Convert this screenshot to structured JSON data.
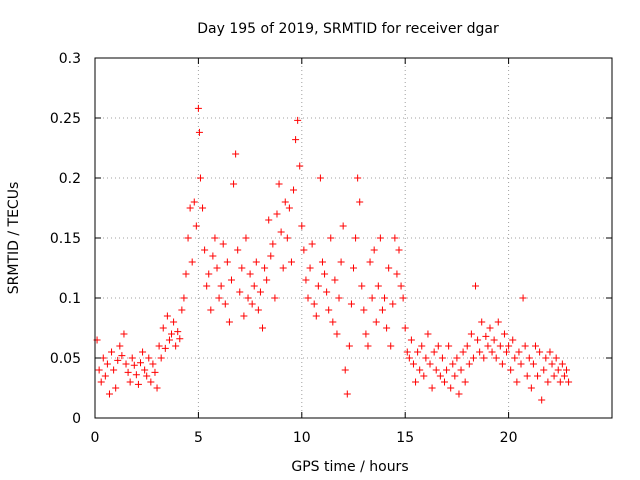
{
  "chart_data": {
    "type": "scatter",
    "title": "Day 195 of 2019, SRMTID for receiver dgar",
    "xlabel": "GPS time / hours",
    "ylabel": "SRMTID / TECUs",
    "xlim": [
      0,
      25
    ],
    "ylim": [
      0,
      0.3
    ],
    "x_ticks": [
      0,
      5,
      10,
      15,
      20
    ],
    "x_tick_labels": [
      "0",
      "5",
      "10",
      "15",
      "20"
    ],
    "y_ticks": [
      0,
      0.05,
      0.1,
      0.15,
      0.2,
      0.25,
      0.3
    ],
    "y_tick_labels": [
      "0",
      "0.05",
      "0.1",
      "0.15",
      "0.2",
      "0.25",
      "0.3"
    ],
    "grid": true,
    "marker": "+",
    "marker_color": "#ff0000",
    "series": [
      {
        "name": "SRMTID",
        "points": [
          [
            0.1,
            0.065
          ],
          [
            0.2,
            0.04
          ],
          [
            0.3,
            0.03
          ],
          [
            0.4,
            0.05
          ],
          [
            0.5,
            0.035
          ],
          [
            0.6,
            0.045
          ],
          [
            0.7,
            0.02
          ],
          [
            0.8,
            0.055
          ],
          [
            0.9,
            0.04
          ],
          [
            1.0,
            0.025
          ],
          [
            1.1,
            0.048
          ],
          [
            1.2,
            0.06
          ],
          [
            1.3,
            0.052
          ],
          [
            1.4,
            0.07
          ],
          [
            1.5,
            0.045
          ],
          [
            1.6,
            0.038
          ],
          [
            1.7,
            0.03
          ],
          [
            1.8,
            0.05
          ],
          [
            1.9,
            0.044
          ],
          [
            2.0,
            0.036
          ],
          [
            2.1,
            0.028
          ],
          [
            2.2,
            0.046
          ],
          [
            2.3,
            0.055
          ],
          [
            2.4,
            0.04
          ],
          [
            2.5,
            0.035
          ],
          [
            2.6,
            0.05
          ],
          [
            2.7,
            0.03
          ],
          [
            2.8,
            0.045
          ],
          [
            2.9,
            0.038
          ],
          [
            3.0,
            0.025
          ],
          [
            3.1,
            0.06
          ],
          [
            3.2,
            0.05
          ],
          [
            3.3,
            0.075
          ],
          [
            3.4,
            0.058
          ],
          [
            3.5,
            0.085
          ],
          [
            3.6,
            0.065
          ],
          [
            3.7,
            0.07
          ],
          [
            3.8,
            0.08
          ],
          [
            3.9,
            0.06
          ],
          [
            4.0,
            0.072
          ],
          [
            4.1,
            0.066
          ],
          [
            4.2,
            0.09
          ],
          [
            4.3,
            0.1
          ],
          [
            4.4,
            0.12
          ],
          [
            4.5,
            0.15
          ],
          [
            4.6,
            0.175
          ],
          [
            4.7,
            0.13
          ],
          [
            4.8,
            0.18
          ],
          [
            4.9,
            0.16
          ],
          [
            5.0,
            0.258
          ],
          [
            5.05,
            0.238
          ],
          [
            5.1,
            0.2
          ],
          [
            5.2,
            0.175
          ],
          [
            5.3,
            0.14
          ],
          [
            5.4,
            0.11
          ],
          [
            5.5,
            0.12
          ],
          [
            5.6,
            0.09
          ],
          [
            5.7,
            0.135
          ],
          [
            5.8,
            0.15
          ],
          [
            5.9,
            0.125
          ],
          [
            6.0,
            0.1
          ],
          [
            6.1,
            0.11
          ],
          [
            6.2,
            0.145
          ],
          [
            6.3,
            0.095
          ],
          [
            6.4,
            0.13
          ],
          [
            6.5,
            0.08
          ],
          [
            6.6,
            0.115
          ],
          [
            6.7,
            0.195
          ],
          [
            6.8,
            0.22
          ],
          [
            6.9,
            0.14
          ],
          [
            7.0,
            0.105
          ],
          [
            7.1,
            0.125
          ],
          [
            7.2,
            0.085
          ],
          [
            7.3,
            0.15
          ],
          [
            7.4,
            0.1
          ],
          [
            7.5,
            0.12
          ],
          [
            7.6,
            0.095
          ],
          [
            7.7,
            0.11
          ],
          [
            7.8,
            0.13
          ],
          [
            7.9,
            0.09
          ],
          [
            8.0,
            0.105
          ],
          [
            8.1,
            0.075
          ],
          [
            8.2,
            0.125
          ],
          [
            8.3,
            0.115
          ],
          [
            8.4,
            0.165
          ],
          [
            8.5,
            0.135
          ],
          [
            8.6,
            0.145
          ],
          [
            8.7,
            0.1
          ],
          [
            8.8,
            0.17
          ],
          [
            8.9,
            0.195
          ],
          [
            9.0,
            0.155
          ],
          [
            9.1,
            0.125
          ],
          [
            9.2,
            0.18
          ],
          [
            9.3,
            0.15
          ],
          [
            9.4,
            0.175
          ],
          [
            9.5,
            0.13
          ],
          [
            9.6,
            0.19
          ],
          [
            9.7,
            0.232
          ],
          [
            9.8,
            0.248
          ],
          [
            9.9,
            0.21
          ],
          [
            10.0,
            0.16
          ],
          [
            10.1,
            0.14
          ],
          [
            10.2,
            0.115
          ],
          [
            10.3,
            0.1
          ],
          [
            10.4,
            0.125
          ],
          [
            10.5,
            0.145
          ],
          [
            10.6,
            0.095
          ],
          [
            10.7,
            0.085
          ],
          [
            10.8,
            0.11
          ],
          [
            10.9,
            0.2
          ],
          [
            11.0,
            0.13
          ],
          [
            11.1,
            0.12
          ],
          [
            11.2,
            0.105
          ],
          [
            11.3,
            0.09
          ],
          [
            11.4,
            0.15
          ],
          [
            11.5,
            0.08
          ],
          [
            11.6,
            0.115
          ],
          [
            11.7,
            0.07
          ],
          [
            11.8,
            0.1
          ],
          [
            11.9,
            0.13
          ],
          [
            12.0,
            0.16
          ],
          [
            12.1,
            0.04
          ],
          [
            12.2,
            0.02
          ],
          [
            12.3,
            0.06
          ],
          [
            12.4,
            0.095
          ],
          [
            12.5,
            0.125
          ],
          [
            12.6,
            0.15
          ],
          [
            12.7,
            0.2
          ],
          [
            12.8,
            0.18
          ],
          [
            12.9,
            0.11
          ],
          [
            13.0,
            0.09
          ],
          [
            13.1,
            0.07
          ],
          [
            13.2,
            0.06
          ],
          [
            13.3,
            0.13
          ],
          [
            13.4,
            0.1
          ],
          [
            13.5,
            0.14
          ],
          [
            13.6,
            0.08
          ],
          [
            13.7,
            0.11
          ],
          [
            13.8,
            0.15
          ],
          [
            13.9,
            0.09
          ],
          [
            14.0,
            0.1
          ],
          [
            14.1,
            0.075
          ],
          [
            14.2,
            0.125
          ],
          [
            14.3,
            0.06
          ],
          [
            14.4,
            0.095
          ],
          [
            14.5,
            0.15
          ],
          [
            14.6,
            0.12
          ],
          [
            14.7,
            0.14
          ],
          [
            14.8,
            0.11
          ],
          [
            14.9,
            0.1
          ],
          [
            15.0,
            0.075
          ],
          [
            15.1,
            0.055
          ],
          [
            15.2,
            0.05
          ],
          [
            15.3,
            0.065
          ],
          [
            15.4,
            0.045
          ],
          [
            15.5,
            0.03
          ],
          [
            15.6,
            0.055
          ],
          [
            15.7,
            0.04
          ],
          [
            15.8,
            0.06
          ],
          [
            15.9,
            0.035
          ],
          [
            16.0,
            0.05
          ],
          [
            16.1,
            0.07
          ],
          [
            16.2,
            0.045
          ],
          [
            16.3,
            0.025
          ],
          [
            16.4,
            0.055
          ],
          [
            16.5,
            0.04
          ],
          [
            16.6,
            0.06
          ],
          [
            16.7,
            0.035
          ],
          [
            16.8,
            0.05
          ],
          [
            16.9,
            0.03
          ],
          [
            17.0,
            0.04
          ],
          [
            17.1,
            0.06
          ],
          [
            17.2,
            0.025
          ],
          [
            17.3,
            0.045
          ],
          [
            17.4,
            0.035
          ],
          [
            17.5,
            0.05
          ],
          [
            17.6,
            0.02
          ],
          [
            17.7,
            0.04
          ],
          [
            17.8,
            0.055
          ],
          [
            17.9,
            0.03
          ],
          [
            18.0,
            0.06
          ],
          [
            18.1,
            0.045
          ],
          [
            18.2,
            0.07
          ],
          [
            18.3,
            0.05
          ],
          [
            18.4,
            0.11
          ],
          [
            18.5,
            0.065
          ],
          [
            18.6,
            0.055
          ],
          [
            18.7,
            0.08
          ],
          [
            18.8,
            0.05
          ],
          [
            18.9,
            0.068
          ],
          [
            19.0,
            0.06
          ],
          [
            19.1,
            0.075
          ],
          [
            19.2,
            0.055
          ],
          [
            19.3,
            0.065
          ],
          [
            19.4,
            0.05
          ],
          [
            19.5,
            0.08
          ],
          [
            19.6,
            0.06
          ],
          [
            19.7,
            0.045
          ],
          [
            19.8,
            0.07
          ],
          [
            19.9,
            0.055
          ],
          [
            20.0,
            0.06
          ],
          [
            20.1,
            0.04
          ],
          [
            20.2,
            0.065
          ],
          [
            20.3,
            0.05
          ],
          [
            20.4,
            0.03
          ],
          [
            20.5,
            0.055
          ],
          [
            20.6,
            0.045
          ],
          [
            20.7,
            0.1
          ],
          [
            20.8,
            0.06
          ],
          [
            20.9,
            0.035
          ],
          [
            21.0,
            0.05
          ],
          [
            21.1,
            0.025
          ],
          [
            21.2,
            0.045
          ],
          [
            21.3,
            0.06
          ],
          [
            21.4,
            0.035
          ],
          [
            21.5,
            0.055
          ],
          [
            21.6,
            0.015
          ],
          [
            21.7,
            0.04
          ],
          [
            21.8,
            0.05
          ],
          [
            21.9,
            0.03
          ],
          [
            22.0,
            0.055
          ],
          [
            22.1,
            0.045
          ],
          [
            22.2,
            0.035
          ],
          [
            22.3,
            0.05
          ],
          [
            22.4,
            0.04
          ],
          [
            22.5,
            0.03
          ],
          [
            22.6,
            0.045
          ],
          [
            22.7,
            0.035
          ],
          [
            22.8,
            0.04
          ],
          [
            22.9,
            0.03
          ]
        ]
      }
    ]
  }
}
